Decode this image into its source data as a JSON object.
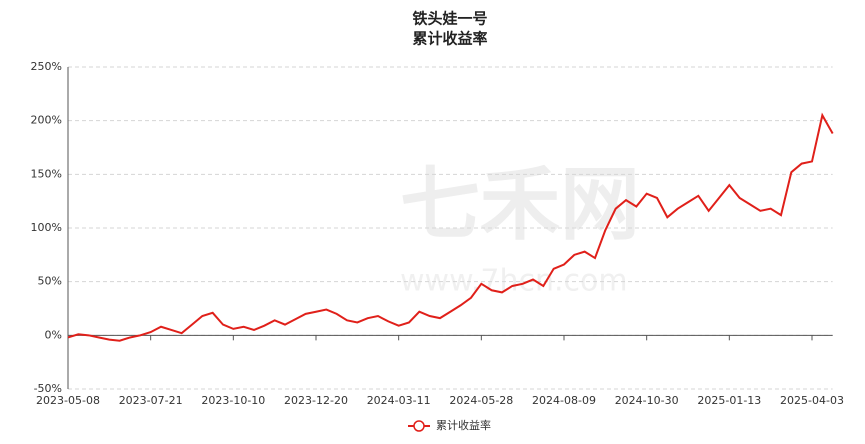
{
  "chart_data": {
    "type": "line",
    "title": "铁头娃一号",
    "subtitle": "累计收益率",
    "watermark": "七禾网",
    "watermark_url": "www.7hcn.com",
    "categories": [
      "2023-05-08",
      null,
      null,
      null,
      null,
      null,
      null,
      null,
      "2023-07-21",
      null,
      null,
      null,
      null,
      null,
      null,
      null,
      "2023-10-10",
      null,
      null,
      null,
      null,
      null,
      null,
      null,
      "2023-12-20",
      null,
      null,
      null,
      null,
      null,
      null,
      null,
      "2024-03-11",
      null,
      null,
      null,
      null,
      null,
      null,
      null,
      "2024-05-28",
      null,
      null,
      null,
      null,
      null,
      null,
      null,
      "2024-08-09",
      null,
      null,
      null,
      null,
      null,
      null,
      null,
      "2024-10-30",
      null,
      null,
      null,
      null,
      null,
      null,
      null,
      "2025-01-13",
      null,
      null,
      null,
      null,
      null,
      null,
      null,
      "2025-04-03",
      null,
      null
    ],
    "series": [
      {
        "name": "累计收益率",
        "color": "#e0201a",
        "values": [
          -2,
          1,
          0,
          -2,
          -4,
          -5,
          -2,
          0,
          3,
          8,
          5,
          2,
          10,
          18,
          21,
          10,
          6,
          8,
          5,
          9,
          14,
          10,
          15,
          20,
          22,
          24,
          20,
          14,
          12,
          16,
          18,
          13,
          9,
          12,
          22,
          18,
          16,
          22,
          28,
          35,
          48,
          42,
          40,
          46,
          48,
          52,
          46,
          62,
          66,
          75,
          78,
          72,
          98,
          118,
          126,
          120,
          132,
          128,
          110,
          118,
          124,
          130,
          116,
          128,
          140,
          128,
          122,
          116,
          118,
          112,
          152,
          160,
          162,
          205,
          188
        ]
      }
    ],
    "ylim": [
      -50,
      250
    ],
    "yticks": [
      {
        "value": -50,
        "label": "-50%"
      },
      {
        "value": 0,
        "label": "0%"
      },
      {
        "value": 50,
        "label": "50%"
      },
      {
        "value": 100,
        "label": "100%"
      },
      {
        "value": 150,
        "label": "150%"
      },
      {
        "value": 200,
        "label": "200%"
      },
      {
        "value": 250,
        "label": "250%"
      }
    ],
    "grid": true
  }
}
